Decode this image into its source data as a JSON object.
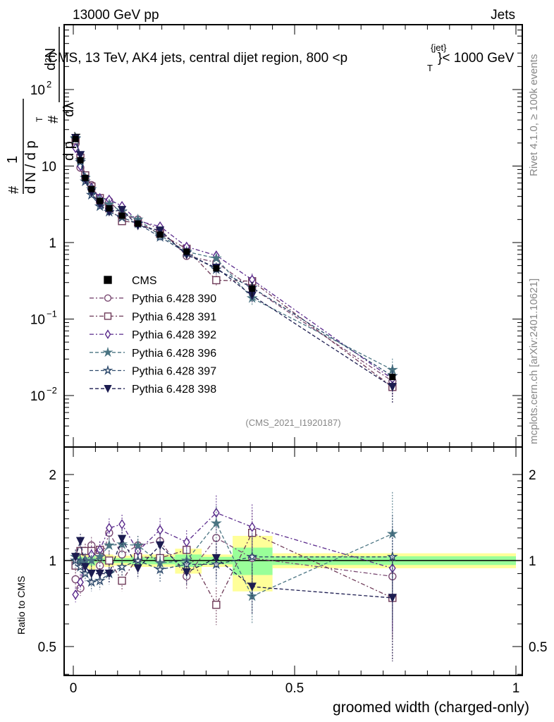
{
  "header": {
    "left": "13000 GeV pp",
    "right": "Jets"
  },
  "side_texts": {
    "rivet": "Rivet 4.1.0, ≥ 100k events",
    "mcplots": "mcplots.cern.ch [arXiv:2401.10621]"
  },
  "chart_data": {
    "type": "line",
    "title": "CMS, 13 TeV, AK4 jets, central dijet region, 800 <p_T^{jet}< 1000 GeV",
    "title_main": "CMS, 13 TeV, AK4 jets, central dijet region, 800 <p",
    "title_sup": "{jet}",
    "title_sub": "T",
    "title_end": "}< 1000 GeV",
    "analysis_tag": "(CMS_2021_I1920187)",
    "xlabel": "groomed width (charged-only)",
    "ylabel_parts": [
      "#",
      "1",
      "d N / d p",
      "T",
      "#",
      "d²N",
      "d p",
      "T",
      "dλ"
    ],
    "ratio_ylabel": "Ratio to CMS",
    "xlim": [
      -0.02,
      1.014
    ],
    "ylim": [
      0.0022,
      720
    ],
    "ratio_ylim": [
      0.39,
      2.5
    ],
    "yscale": "log",
    "x_tick_labels": [
      "0",
      "0.5",
      "1"
    ],
    "x_ticks": [
      0,
      0.5,
      1
    ],
    "y_tick_labels": [
      {
        "base": "10",
        "exp": "−2",
        "v": 0.01
      },
      {
        "base": "10",
        "exp": "−1",
        "v": 0.1
      },
      {
        "base": "1",
        "exp": "",
        "v": 1
      },
      {
        "base": "10",
        "exp": "",
        "v": 10
      },
      {
        "base": "10",
        "exp": "2",
        "v": 100
      }
    ],
    "ratio_tick_labels": [
      {
        "label": "0.5",
        "v": 0.5
      },
      {
        "label": "1",
        "v": 1
      },
      {
        "label": "2",
        "v": 2
      }
    ],
    "legend_position": "middle-left",
    "bin_edges": [
      0,
      0.01,
      0.02,
      0.035,
      0.05,
      0.07,
      0.09,
      0.13,
      0.16,
      0.23,
      0.29,
      0.36,
      0.45,
      1.0
    ],
    "x": [
      0.005,
      0.016,
      0.027,
      0.041,
      0.06,
      0.081,
      0.11,
      0.146,
      0.196,
      0.256,
      0.323,
      0.404,
      0.721
    ],
    "data": {
      "name": "CMS",
      "values": [
        22.6,
        11.9,
        7.0,
        5.0,
        3.5,
        2.8,
        2.24,
        1.77,
        1.27,
        0.76,
        0.46,
        0.25,
        0.0175
      ],
      "band_total_rel": [
        0.04,
        0.06,
        0.06,
        0.07,
        0.04,
        0.05,
        0.04,
        0.05,
        0.05,
        0.1,
        0.05,
        0.22,
        0.06
      ],
      "band_stat_rel": [
        0.02,
        0.03,
        0.03,
        0.04,
        0.02,
        0.03,
        0.02,
        0.03,
        0.03,
        0.05,
        0.03,
        0.11,
        0.035
      ],
      "color": "#000000"
    },
    "mc_rel_err": [
      0.06,
      0.06,
      0.06,
      0.07,
      0.07,
      0.08,
      0.08,
      0.08,
      0.1,
      0.1,
      0.15,
      0.2,
      0.4
    ],
    "series": [
      {
        "name": "Pythia 6.428 390",
        "marker": "circle-open",
        "dash": "6,3,2,3",
        "color": "#7a4a72",
        "ratio": [
          0.86,
          0.8,
          1.08,
          1.13,
          0.96,
          1.25,
          1.05,
          1.13,
          1.17,
          0.88,
          1.2,
          1.02,
          0.88
        ]
      },
      {
        "name": "Pythia 6.428 391",
        "marker": "square-open",
        "dash": "6,3,2,3",
        "color": "#6e3a58",
        "ratio": [
          0.96,
          1.08,
          1.08,
          1.08,
          1.09,
          1.0,
          0.85,
          1.03,
          1.02,
          1.09,
          0.7,
          1.25,
          0.74
        ]
      },
      {
        "name": "Pythia 6.428 392",
        "marker": "diamond-open",
        "dash": "6,3,2,3",
        "color": "#5a2a8c",
        "ratio": [
          0.76,
          0.84,
          1.0,
          1.05,
          1.09,
          1.3,
          1.34,
          1.08,
          1.28,
          1.16,
          1.47,
          1.31,
          0.94
        ]
      },
      {
        "name": "Pythia 6.428 396",
        "marker": "star-filled",
        "dash": "5,3",
        "color": "#4a7482",
        "ratio": [
          1.03,
          1.0,
          1.0,
          1.0,
          1.03,
          1.13,
          1.14,
          1.13,
          0.98,
          1.0,
          1.35,
          0.75,
          1.24
        ]
      },
      {
        "name": "Pythia 6.428 397",
        "marker": "star-open",
        "dash": "5,3",
        "color": "#2e4a6c",
        "ratio": [
          1.0,
          0.95,
          0.9,
          0.84,
          0.85,
          0.9,
          0.95,
          1.0,
          0.93,
          0.97,
          0.97,
          1.03,
          1.03
        ]
      },
      {
        "name": "Pythia 6.428 398",
        "marker": "triangle-down-filled",
        "dash": "5,3",
        "color": "#1c1c50",
        "ratio": [
          1.03,
          1.17,
          0.95,
          0.9,
          0.9,
          0.9,
          1.19,
          0.94,
          1.13,
          0.91,
          1.02,
          0.81,
          0.74
        ]
      }
    ]
  }
}
